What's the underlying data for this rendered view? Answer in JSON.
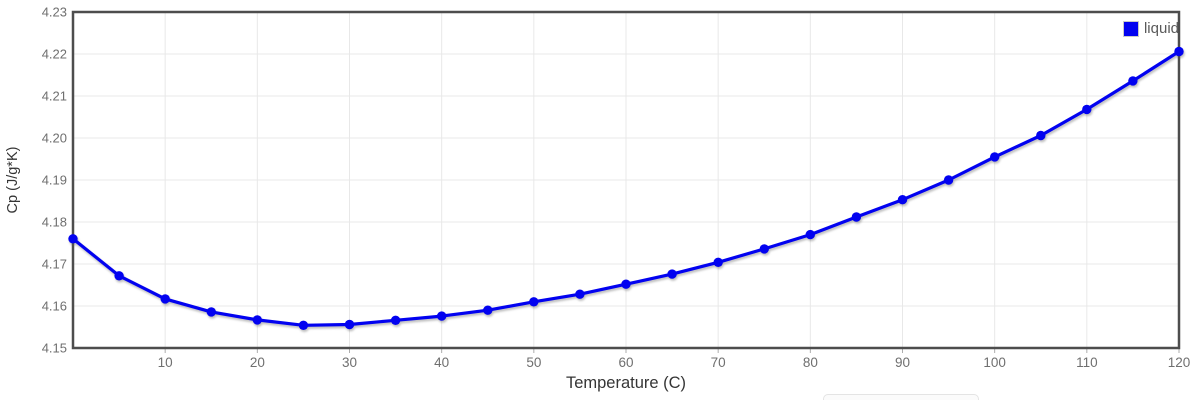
{
  "chart": {
    "title": "",
    "x_axis_title": "Temperature (C)",
    "y_axis_title": "Cp (J/g*K)",
    "legend": {
      "label": "liquid"
    }
  },
  "colors": {
    "series_blue": "#0202f0",
    "plot_border": "#4d4d4d",
    "gridline": "#e8e8e8",
    "tick_label": "#6f6f6f",
    "axis_title": "#353535"
  },
  "chart_data": {
    "type": "line",
    "title": "",
    "xlabel": "Temperature (C)",
    "ylabel": "Cp (J/g*K)",
    "xlim": [
      0,
      120
    ],
    "ylim": [
      4.15,
      4.23
    ],
    "xticks": [
      10,
      20,
      30,
      40,
      50,
      60,
      70,
      80,
      90,
      100,
      110,
      120
    ],
    "ytick_labels": [
      "4.15",
      "4.16",
      "4.17",
      "4.18",
      "4.19",
      "4.20",
      "4.21",
      "4.22",
      "4.23"
    ],
    "grid": true,
    "legend_position": "top-right-inside",
    "marker": "circle",
    "series": [
      {
        "name": "liquid",
        "color": "#0202f0",
        "x": [
          0,
          5,
          10,
          15,
          20,
          25,
          30,
          35,
          40,
          45,
          50,
          55,
          60,
          65,
          70,
          75,
          80,
          85,
          90,
          95,
          100,
          105,
          110,
          115,
          120
        ],
        "y": [
          4.176,
          4.1672,
          4.1617,
          4.1586,
          4.1567,
          4.1554,
          4.1556,
          4.1566,
          4.1576,
          4.159,
          4.161,
          4.1628,
          4.1652,
          4.1676,
          4.1704,
          4.1736,
          4.177,
          4.1812,
          4.1853,
          4.19,
          4.1955,
          4.2006,
          4.2068,
          4.2136,
          4.2206
        ]
      }
    ]
  }
}
